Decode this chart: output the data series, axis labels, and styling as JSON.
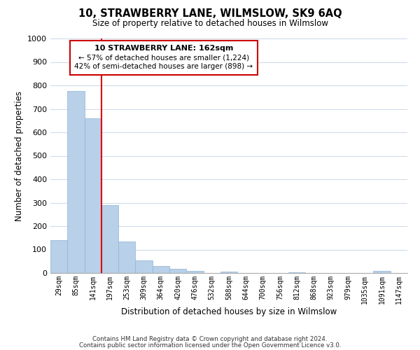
{
  "title": "10, STRAWBERRY LANE, WILMSLOW, SK9 6AQ",
  "subtitle": "Size of property relative to detached houses in Wilmslow",
  "xlabel": "Distribution of detached houses by size in Wilmslow",
  "ylabel": "Number of detached properties",
  "bar_labels": [
    "29sqm",
    "85sqm",
    "141sqm",
    "197sqm",
    "253sqm",
    "309sqm",
    "364sqm",
    "420sqm",
    "476sqm",
    "532sqm",
    "588sqm",
    "644sqm",
    "700sqm",
    "756sqm",
    "812sqm",
    "868sqm",
    "923sqm",
    "979sqm",
    "1035sqm",
    "1091sqm",
    "1147sqm"
  ],
  "bar_values": [
    140,
    775,
    660,
    290,
    135,
    55,
    30,
    17,
    8,
    0,
    5,
    0,
    0,
    0,
    3,
    0,
    0,
    0,
    0,
    8,
    0
  ],
  "bar_color": "#b8d0e8",
  "bar_edge_color": "#90b4d4",
  "vline_x_index": 2,
  "vline_color": "#dd0000",
  "ylim": [
    0,
    1000
  ],
  "yticks": [
    0,
    100,
    200,
    300,
    400,
    500,
    600,
    700,
    800,
    900,
    1000
  ],
  "annotation_title": "10 STRAWBERRY LANE: 162sqm",
  "annotation_line1": "← 57% of detached houses are smaller (1,224)",
  "annotation_line2": "42% of semi-detached houses are larger (898) →",
  "box_fill_color": "#ffffff",
  "box_edge_color": "#cc0000",
  "footer_line1": "Contains HM Land Registry data © Crown copyright and database right 2024.",
  "footer_line2": "Contains public sector information licensed under the Open Government Licence v3.0.",
  "background_color": "#ffffff",
  "grid_color": "#c8d8e8"
}
